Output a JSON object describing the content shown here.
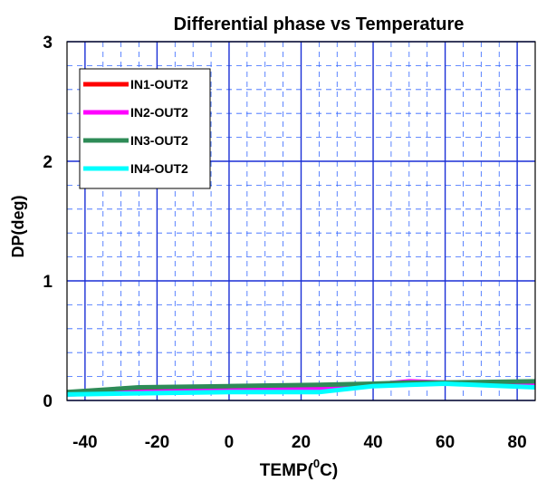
{
  "chart_data": {
    "type": "line",
    "title": "Differential phase vs Temperature",
    "xlabel_main": "TEMP(",
    "xlabel_sup": "0",
    "xlabel_tail": "C)",
    "ylabel": "DP(deg)",
    "xlim": [
      -45,
      85
    ],
    "ylim": [
      0,
      3
    ],
    "x_ticks": [
      -40,
      -20,
      0,
      20,
      40,
      60,
      80
    ],
    "y_ticks": [
      0,
      1,
      2,
      3
    ],
    "x_minor_step": 5,
    "y_minor_step": 0.2,
    "grid": true,
    "legend_position": "top-left",
    "x": [
      -45,
      -25,
      0,
      25,
      40,
      50,
      60,
      85
    ],
    "series": [
      {
        "name": "IN1-OUT2",
        "color": "#ff0000",
        "values": [
          0.06,
          0.08,
          0.1,
          0.11,
          0.13,
          0.15,
          0.14,
          0.14
        ]
      },
      {
        "name": "IN2-OUT2",
        "color": "#ff00ff",
        "values": [
          0.05,
          0.07,
          0.09,
          0.1,
          0.13,
          0.16,
          0.15,
          0.13
        ]
      },
      {
        "name": "IN3-OUT2",
        "color": "#2e8b57",
        "values": [
          0.07,
          0.11,
          0.12,
          0.13,
          0.14,
          0.15,
          0.15,
          0.16
        ]
      },
      {
        "name": "IN4-OUT2",
        "color": "#00ffff",
        "values": [
          0.05,
          0.06,
          0.07,
          0.07,
          0.12,
          0.13,
          0.14,
          0.11
        ]
      }
    ]
  }
}
